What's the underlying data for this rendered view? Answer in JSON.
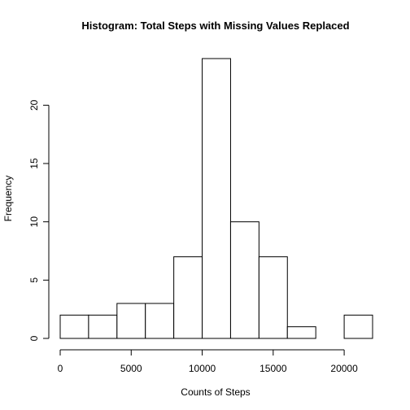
{
  "chart_data": {
    "type": "bar",
    "title": "Histogram: Total Steps with Missing Values Replaced",
    "xlabel": "Counts of Steps",
    "ylabel": "Frequency",
    "bins": [
      {
        "start": 0,
        "end": 2000,
        "value": 2
      },
      {
        "start": 2000,
        "end": 4000,
        "value": 2
      },
      {
        "start": 4000,
        "end": 6000,
        "value": 3
      },
      {
        "start": 6000,
        "end": 8000,
        "value": 3
      },
      {
        "start": 8000,
        "end": 10000,
        "value": 7
      },
      {
        "start": 10000,
        "end": 12000,
        "value": 24
      },
      {
        "start": 12000,
        "end": 14000,
        "value": 10
      },
      {
        "start": 14000,
        "end": 16000,
        "value": 7
      },
      {
        "start": 16000,
        "end": 18000,
        "value": 1
      },
      {
        "start": 18000,
        "end": 20000,
        "value": 0
      },
      {
        "start": 20000,
        "end": 22000,
        "value": 2
      }
    ],
    "xticks": [
      0,
      5000,
      10000,
      15000,
      20000
    ],
    "yticks": [
      0,
      5,
      10,
      15,
      20
    ],
    "xlim": [
      0,
      22000
    ],
    "ylim": [
      0,
      24
    ],
    "grid": false,
    "bar_fill": "#ffffff",
    "bar_stroke": "#000000"
  }
}
